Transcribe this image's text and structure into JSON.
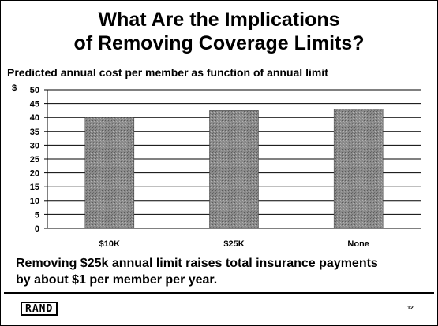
{
  "slide": {
    "title_line1": "What Are the Implications",
    "title_line2": "of Removing Coverage Limits?",
    "subtitle": "Predicted annual cost per member as function of annual limit",
    "caption_line1": "Removing $25k annual limit raises total insurance payments",
    "caption_line2": "by about $1 per member per year.",
    "logo_text": "RAND",
    "page_number": "12"
  },
  "chart_data": {
    "type": "bar",
    "title": "",
    "categories": [
      "$10K",
      "$25K",
      "None"
    ],
    "series": [
      {
        "values": [
          40,
          42.5,
          43
        ]
      }
    ],
    "y_axis_unit": "$",
    "ylim": [
      0,
      50
    ],
    "yticks": [
      0,
      5,
      10,
      15,
      20,
      25,
      30,
      35,
      40,
      45,
      50
    ],
    "grid": true,
    "bar_color": "#8a8a8a"
  }
}
